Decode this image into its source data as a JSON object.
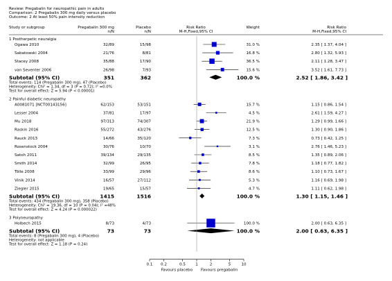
{
  "review": {
    "review_line": "Review:  Pregabalin for neuropathic pain in adults",
    "comparison_line": "Comparison:  2 Pregabalin 300 mg daily versus placebo",
    "outcome_line": "Outcome:  2 At least 50% pain intensity reduction"
  },
  "columns": {
    "study": "Study or subgroup",
    "treatment": "Pregabalin 300 mg",
    "treatment_n": "n/N",
    "control": "Placebo",
    "control_n": "n/N",
    "rr_plot": "Risk Ratio",
    "rr_plot_method": "M-H,Fixed,95% CI",
    "weight": "Weight",
    "rr_value": "Risk Ratio",
    "rr_value_method": "M-H,Fixed,95% CI"
  },
  "axis": {
    "ticks": [
      "0.1",
      "0.2",
      "0.5",
      "1",
      "2",
      "5",
      "10"
    ],
    "favours_left": "Favours placebo",
    "favours_right": "Favours pregabalin"
  },
  "chart_data": {
    "type": "forest",
    "x_scale": "log",
    "xlim": [
      0.1,
      10
    ],
    "null_value": 1,
    "groups": [
      {
        "title": "1 Postherpetic neuralgia",
        "studies": [
          {
            "name": "Ogawa 2010",
            "treatment": "32/89",
            "control": "15/98",
            "weight": "31.0 %",
            "ci_text": "2.35 [ 1.37, 4.04 ]",
            "rr": 2.35,
            "lo": 1.37,
            "hi": 4.04,
            "w": 31.0
          },
          {
            "name": "Sabatowski 2004",
            "treatment": "21/76",
            "control": "8/81",
            "weight": "16.8 %",
            "ci_text": "2.80 [ 1.32, 5.93 ]",
            "rr": 2.8,
            "lo": 1.32,
            "hi": 5.93,
            "w": 16.8
          },
          {
            "name": "Stacey 2008",
            "treatment": "35/88",
            "control": "17/90",
            "weight": "36.5 %",
            "ci_text": "2.11 [ 1.28, 3.47 ]",
            "rr": 2.11,
            "lo": 1.28,
            "hi": 3.47,
            "w": 36.5
          },
          {
            "name": "van Seventer 2006",
            "treatment": "26/98",
            "control": "7/93",
            "weight": "15.6 %",
            "ci_text": "3.52 [ 1.61, 7.73 ]",
            "rr": 3.52,
            "lo": 1.61,
            "hi": 7.73,
            "w": 15.6
          }
        ],
        "subtotal": {
          "label": "Subtotal (95% CI)",
          "treatment": "351",
          "control": "362",
          "weight": "100.0 %",
          "ci_text": "2.52 [ 1.86, 3.42 ]",
          "rr": 2.52,
          "lo": 1.86,
          "hi": 3.42
        },
        "notes": [
          "Total events: 114 (Pregabalin 300 mg), 47 (Placebo)",
          "Heterogeneity: Chi² = 1.34, df = 3 (P = 0.72); I² =0.0%",
          "Test for overall effect: Z = 5.94 (P < 0.00001)"
        ]
      },
      {
        "title": "2 Painful diabetic neuropathy",
        "studies": [
          {
            "name": "A0081071 [NCT00143156]",
            "treatment": "62/153",
            "control": "53/151",
            "weight": "15.7 %",
            "ci_text": "1.15 [ 0.86, 1.54 ]",
            "rr": 1.15,
            "lo": 0.86,
            "hi": 1.54,
            "w": 15.7
          },
          {
            "name": "Lesser 2004",
            "treatment": "37/81",
            "control": "17/97",
            "weight": "4.5 %",
            "ci_text": "2.61 [ 1.59, 4.27 ]",
            "rr": 2.61,
            "lo": 1.59,
            "hi": 4.27,
            "w": 4.5
          },
          {
            "name": "Mu 2018",
            "treatment": "97/313",
            "control": "74/307",
            "weight": "21.9 %",
            "ci_text": "1.29 [ 0.99, 1.66 ]",
            "rr": 1.29,
            "lo": 0.99,
            "hi": 1.66,
            "w": 21.9
          },
          {
            "name": "Raskin 2016",
            "treatment": "55/272",
            "control": "43/276",
            "weight": "12.5 %",
            "ci_text": "1.30 [ 0.90, 1.86 ]",
            "rr": 1.3,
            "lo": 0.9,
            "hi": 1.86,
            "w": 12.5
          },
          {
            "name": "Rauck 2013",
            "treatment": "14/66",
            "control": "35/120",
            "weight": "7.3 %",
            "ci_text": "0.73 [ 0.42, 1.25 ]",
            "rr": 0.73,
            "lo": 0.42,
            "hi": 1.25,
            "w": 7.3
          },
          {
            "name": "Rosenstock 2004",
            "treatment": "30/76",
            "control": "10/70",
            "weight": "3.1 %",
            "ci_text": "2.76 [ 1.46, 5.23 ]",
            "rr": 2.76,
            "lo": 1.46,
            "hi": 5.23,
            "w": 3.1
          },
          {
            "name": "Satoh 2011",
            "treatment": "39/134",
            "control": "29/135",
            "weight": "8.5 %",
            "ci_text": "1.35 [ 0.89, 2.06 ]",
            "rr": 1.35,
            "lo": 0.89,
            "hi": 2.06,
            "w": 8.5
          },
          {
            "name": "Smith 2014",
            "treatment": "32/99",
            "control": "26/95",
            "weight": "7.8 %",
            "ci_text": "1.18 [ 0.77, 1.82 ]",
            "rr": 1.18,
            "lo": 0.77,
            "hi": 1.82,
            "w": 7.8
          },
          {
            "name": "Tölle 2008",
            "treatment": "33/99",
            "control": "29/96",
            "weight": "8.6 %",
            "ci_text": "1.10 [ 0.73, 1.67 ]",
            "rr": 1.1,
            "lo": 0.73,
            "hi": 1.67,
            "w": 8.6
          },
          {
            "name": "Vinik 2014",
            "treatment": "16/57",
            "control": "27/112",
            "weight": "5.3 %",
            "ci_text": "1.16 [ 0.69, 1.98 ]",
            "rr": 1.16,
            "lo": 0.69,
            "hi": 1.98,
            "w": 5.3
          },
          {
            "name": "Ziegler 2015",
            "treatment": "19/65",
            "control": "15/57",
            "weight": "4.7 %",
            "ci_text": "1.11 [ 0.62, 1.98 ]",
            "rr": 1.11,
            "lo": 0.62,
            "hi": 1.98,
            "w": 4.7
          }
        ],
        "subtotal": {
          "label": "Subtotal (95% CI)",
          "treatment": "1415",
          "control": "1516",
          "weight": "100.0 %",
          "ci_text": "1.30 [ 1.15, 1.46 ]",
          "rr": 1.3,
          "lo": 1.15,
          "hi": 1.46
        },
        "notes": [
          "Total events: 434 (Pregabalin 300 mg), 358 (Placebo)",
          "Heterogeneity: Chi² = 19.36, df = 10 (P = 0.04); I² =48%",
          "Test for overall effect: Z = 4.24 (P = 0.000022)"
        ]
      },
      {
        "title": "3 Polyneuropathy",
        "studies": [
          {
            "name": "Holbech 2015",
            "treatment": "8/73",
            "control": "4/73",
            "weight": "100.0 %",
            "ci_text": "2.00 [ 0.63, 6.35 ]",
            "rr": 2.0,
            "lo": 0.63,
            "hi": 6.35,
            "w": 100.0
          }
        ],
        "subtotal": {
          "label": "Subtotal (95% CI)",
          "treatment": "73",
          "control": "73",
          "weight": "100.0 %",
          "ci_text": "2.00 [ 0.63, 6.35 ]",
          "rr": 2.0,
          "lo": 0.63,
          "hi": 6.35
        },
        "notes": [
          "Total events: 8 (Pregabalin 300 mg), 4 (Placebo)",
          "Heterogeneity: not applicable",
          "Test for overall effect: Z = 1.18 (P = 0.24)"
        ]
      }
    ],
    "colors": {
      "box": "#0000cc",
      "diamond": "#000000",
      "line": "#000000",
      "null_line": "#999999"
    }
  }
}
